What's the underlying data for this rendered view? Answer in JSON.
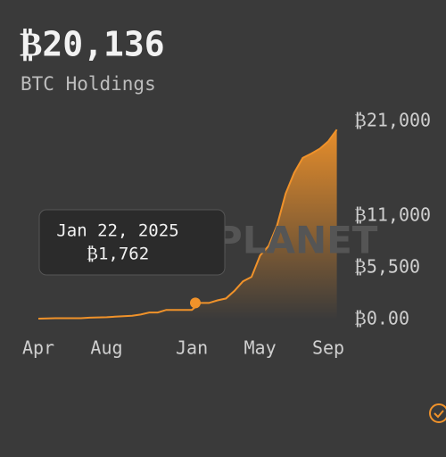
{
  "header": {
    "title": "₿20,136",
    "subtitle": "BTC Holdings"
  },
  "watermark": "METAPLANET",
  "chart_data": {
    "type": "line",
    "color": "#f0922a",
    "categories": [
      "Apr",
      null,
      null,
      null,
      null,
      null,
      null,
      null,
      "Aug",
      null,
      null,
      null,
      null,
      null,
      null,
      null,
      null,
      null,
      "Jan",
      null,
      null,
      null,
      null,
      null,
      null,
      null,
      "May",
      null,
      null,
      null,
      null,
      null,
      null,
      null,
      "Sep",
      null
    ],
    "values": [
      97,
      117,
      141,
      141,
      141,
      141,
      203,
      225,
      246,
      304,
      360,
      399,
      530,
      748,
      748,
      1018,
      1018,
      1018,
      1018,
      1762,
      1762,
      2031,
      2235,
      3050,
      4046,
      4525,
      6796,
      7800,
      10000,
      13350,
      15555,
      17132,
      17595,
      18113,
      18888,
      20136
    ],
    "ylim": [
      0,
      22000
    ],
    "yticks": [
      {
        "value": 0,
        "label": "₿0.00"
      },
      {
        "value": 5500,
        "label": "₿5,500"
      },
      {
        "value": 11000,
        "label": "₿11,000"
      },
      {
        "value": 21000,
        "label": "₿21,000"
      }
    ],
    "tooltip": {
      "label": "Jan 22, 2025",
      "value": 1762,
      "value_label": "₿1,762"
    }
  }
}
